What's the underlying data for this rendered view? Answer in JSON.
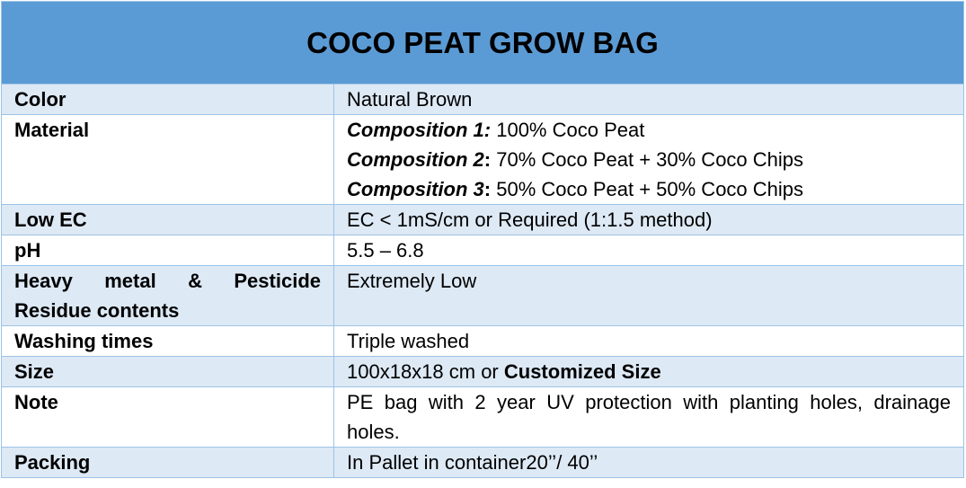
{
  "title": "COCO PEAT GROW BAG",
  "rows": {
    "color": {
      "label": "Color",
      "value": "Natural Brown"
    },
    "material": {
      "label": "Material",
      "compositions": [
        {
          "name": "Composition 1:",
          "sep": "",
          "value": " 100% Coco Peat"
        },
        {
          "name": "Composition 2",
          "sep": ":",
          "value": " 70% Coco Peat + 30% Coco Chips"
        },
        {
          "name": "Composition 3",
          "sep": ":",
          "value": " 50% Coco Peat + 50% Coco Chips"
        }
      ]
    },
    "low_ec": {
      "label": "Low EC",
      "value": "EC < 1mS/cm or Required (1:1.5 method)"
    },
    "ph": {
      "label": "pH",
      "value": "5.5 – 6.8"
    },
    "heavy_metal": {
      "label_line1": "Heavy metal & Pesticide",
      "label_line2": "Residue contents",
      "value": "Extremely Low"
    },
    "washing": {
      "label": "Washing times",
      "value": "Triple washed"
    },
    "size": {
      "label": "Size",
      "value_plain": "100x18x18 cm or ",
      "value_bold": "Customized Size"
    },
    "note": {
      "label": "Note",
      "value": "PE bag with 2 year UV protection with planting holes, drainage holes."
    },
    "packing": {
      "label": "Packing",
      "value": "In Pallet in container20’’/ 40’’"
    }
  }
}
